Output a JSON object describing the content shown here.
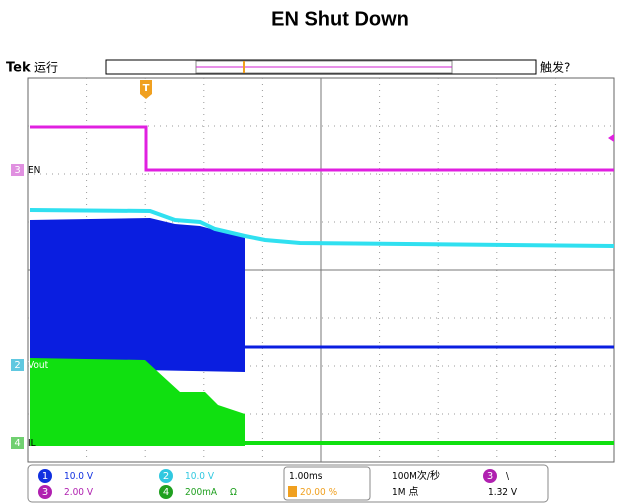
{
  "title": "EN Shut Down",
  "header": {
    "brand": "Tek",
    "run_status": "运行",
    "trigger_status": "触发?"
  },
  "trigger_marker": "T",
  "channel_markers": [
    {
      "number": "3",
      "label": "EN"
    },
    {
      "number": "2",
      "label": "Vout"
    },
    {
      "number": "4",
      "label": "IL"
    }
  ],
  "readouts": {
    "ch1": {
      "number": "1",
      "scale": "10.0 V"
    },
    "ch2": {
      "number": "2",
      "scale": "10.0 V"
    },
    "ch3": {
      "number": "3",
      "scale": "2.00 V"
    },
    "ch4": {
      "number": "4",
      "scale": "200mA",
      "impedance": "Ω"
    },
    "timebase": "1.00ms",
    "trigger_position": "20.00 %",
    "sample_rate": "100M次/秒",
    "record_length": "1M 点",
    "trigger_source": "3",
    "trigger_slope": "\\",
    "trigger_level": "1.32 V"
  }
}
